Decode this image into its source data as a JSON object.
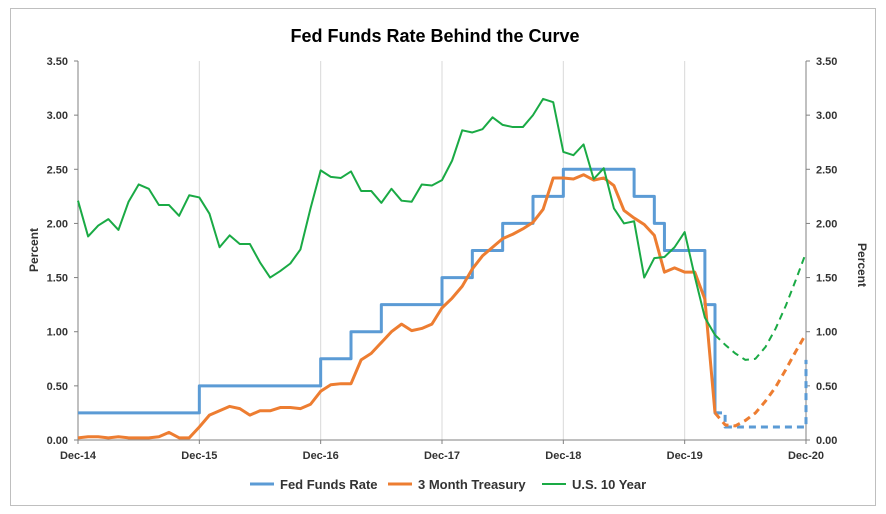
{
  "chart_data": {
    "type": "line",
    "title": "Fed Funds Rate Behind the Curve",
    "ylabel_left": "Percent",
    "ylabel_right": "Percent",
    "ylim": [
      0,
      3.5
    ],
    "y_ticks": [
      "0.00",
      "0.50",
      "1.00",
      "1.50",
      "2.00",
      "2.50",
      "3.00",
      "3.50"
    ],
    "x_ticks": [
      "Dec-14",
      "Dec-15",
      "Dec-16",
      "Dec-17",
      "Dec-18",
      "Dec-19",
      "Dec-20"
    ],
    "xlim": [
      "2014-12",
      "2020-12"
    ],
    "grid": "vertical",
    "legend_position": "bottom",
    "colors": {
      "fed": "#5b9bd5",
      "treasury": "#ed7d31",
      "tenyear": "#1aaa45",
      "grid": "#d9d9d9",
      "axis": "#808080"
    },
    "series": [
      {
        "name": "Fed Funds Rate",
        "style": "step",
        "x": [
          "2014-12",
          "2015-12",
          "2016-12",
          "2017-03",
          "2017-06",
          "2017-12",
          "2018-03",
          "2018-06",
          "2018-09",
          "2018-12",
          "2019-07",
          "2019-09",
          "2019-10",
          "2020-02",
          "2020-03"
        ],
        "values": [
          0.25,
          0.5,
          0.75,
          1.0,
          1.25,
          1.5,
          1.75,
          2.0,
          2.25,
          2.5,
          2.25,
          2.0,
          1.75,
          1.25,
          0.25
        ]
      },
      {
        "name": "Fed Funds Rate (projected)",
        "style": "step-dashed",
        "x": [
          "2020-03",
          "2020-04",
          "2020-09",
          "2020-12"
        ],
        "values": [
          0.25,
          0.12,
          0.12,
          0.74
        ],
        "legend": false
      },
      {
        "name": "3 Month Treasury",
        "style": "line",
        "x": [
          "2014-12",
          "2015-01",
          "2015-02",
          "2015-03",
          "2015-04",
          "2015-05",
          "2015-06",
          "2015-07",
          "2015-08",
          "2015-09",
          "2015-10",
          "2015-11",
          "2015-12",
          "2016-01",
          "2016-02",
          "2016-03",
          "2016-04",
          "2016-05",
          "2016-06",
          "2016-07",
          "2016-08",
          "2016-09",
          "2016-10",
          "2016-11",
          "2016-12",
          "2017-01",
          "2017-02",
          "2017-03",
          "2017-04",
          "2017-05",
          "2017-06",
          "2017-07",
          "2017-08",
          "2017-09",
          "2017-10",
          "2017-11",
          "2017-12",
          "2018-01",
          "2018-02",
          "2018-03",
          "2018-04",
          "2018-05",
          "2018-06",
          "2018-07",
          "2018-08",
          "2018-09",
          "2018-10",
          "2018-11",
          "2018-12",
          "2019-01",
          "2019-02",
          "2019-03",
          "2019-04",
          "2019-05",
          "2019-06",
          "2019-07",
          "2019-08",
          "2019-09",
          "2019-10",
          "2019-11",
          "2019-12",
          "2020-01",
          "2020-02",
          "2020-03"
        ],
        "values": [
          0.02,
          0.03,
          0.03,
          0.02,
          0.03,
          0.02,
          0.02,
          0.02,
          0.03,
          0.07,
          0.02,
          0.02,
          0.12,
          0.23,
          0.27,
          0.31,
          0.29,
          0.23,
          0.27,
          0.27,
          0.3,
          0.3,
          0.29,
          0.33,
          0.45,
          0.51,
          0.52,
          0.52,
          0.74,
          0.8,
          0.9,
          1.0,
          1.07,
          1.01,
          1.03,
          1.07,
          1.22,
          1.31,
          1.42,
          1.58,
          1.7,
          1.78,
          1.86,
          1.9,
          1.95,
          2.01,
          2.13,
          2.42,
          2.42,
          2.41,
          2.45,
          2.4,
          2.42,
          2.35,
          2.12,
          2.05,
          1.99,
          1.89,
          1.55,
          1.59,
          1.55,
          1.55,
          1.3,
          0.25
        ]
      },
      {
        "name": "3 Month Treasury (projected)",
        "style": "dashed",
        "x": [
          "2020-03",
          "2020-04",
          "2020-05",
          "2020-06",
          "2020-07",
          "2020-08",
          "2020-09",
          "2020-10",
          "2020-11",
          "2020-12"
        ],
        "values": [
          0.25,
          0.14,
          0.13,
          0.18,
          0.25,
          0.36,
          0.49,
          0.65,
          0.82,
          0.98
        ],
        "legend": false
      },
      {
        "name": "U.S. 10 Year",
        "style": "line",
        "x": [
          "2014-12",
          "2015-01",
          "2015-02",
          "2015-03",
          "2015-04",
          "2015-05",
          "2015-06",
          "2015-07",
          "2015-08",
          "2015-09",
          "2015-10",
          "2015-11",
          "2015-12",
          "2016-01",
          "2016-02",
          "2016-03",
          "2016-04",
          "2016-05",
          "2016-06",
          "2016-07",
          "2016-08",
          "2016-09",
          "2016-10",
          "2016-11",
          "2016-12",
          "2017-01",
          "2017-02",
          "2017-03",
          "2017-04",
          "2017-05",
          "2017-06",
          "2017-07",
          "2017-08",
          "2017-09",
          "2017-10",
          "2017-11",
          "2017-12",
          "2018-01",
          "2018-02",
          "2018-03",
          "2018-04",
          "2018-05",
          "2018-06",
          "2018-07",
          "2018-08",
          "2018-09",
          "2018-10",
          "2018-11",
          "2018-12",
          "2019-01",
          "2019-02",
          "2019-03",
          "2019-04",
          "2019-05",
          "2019-06",
          "2019-07",
          "2019-08",
          "2019-09",
          "2019-10",
          "2019-11",
          "2019-12",
          "2020-01",
          "2020-02",
          "2020-03"
        ],
        "values": [
          2.21,
          1.88,
          1.98,
          2.04,
          1.94,
          2.2,
          2.36,
          2.32,
          2.17,
          2.17,
          2.07,
          2.26,
          2.24,
          2.09,
          1.78,
          1.89,
          1.81,
          1.81,
          1.64,
          1.5,
          1.56,
          1.63,
          1.76,
          2.14,
          2.49,
          2.43,
          2.42,
          2.48,
          2.3,
          2.3,
          2.19,
          2.32,
          2.21,
          2.2,
          2.36,
          2.35,
          2.4,
          2.58,
          2.86,
          2.84,
          2.87,
          2.98,
          2.91,
          2.89,
          2.89,
          3.0,
          3.15,
          3.12,
          2.66,
          2.63,
          2.73,
          2.41,
          2.51,
          2.14,
          2.0,
          2.02,
          1.5,
          1.68,
          1.69,
          1.78,
          1.92,
          1.51,
          1.13,
          0.97
        ]
      },
      {
        "name": "U.S. 10 Year (projected)",
        "style": "dashed",
        "x": [
          "2020-03",
          "2020-04",
          "2020-05",
          "2020-06",
          "2020-07",
          "2020-08",
          "2020-09",
          "2020-10",
          "2020-11",
          "2020-12"
        ],
        "values": [
          0.97,
          0.88,
          0.8,
          0.74,
          0.75,
          0.86,
          1.03,
          1.24,
          1.48,
          1.73
        ],
        "legend": false
      }
    ]
  }
}
